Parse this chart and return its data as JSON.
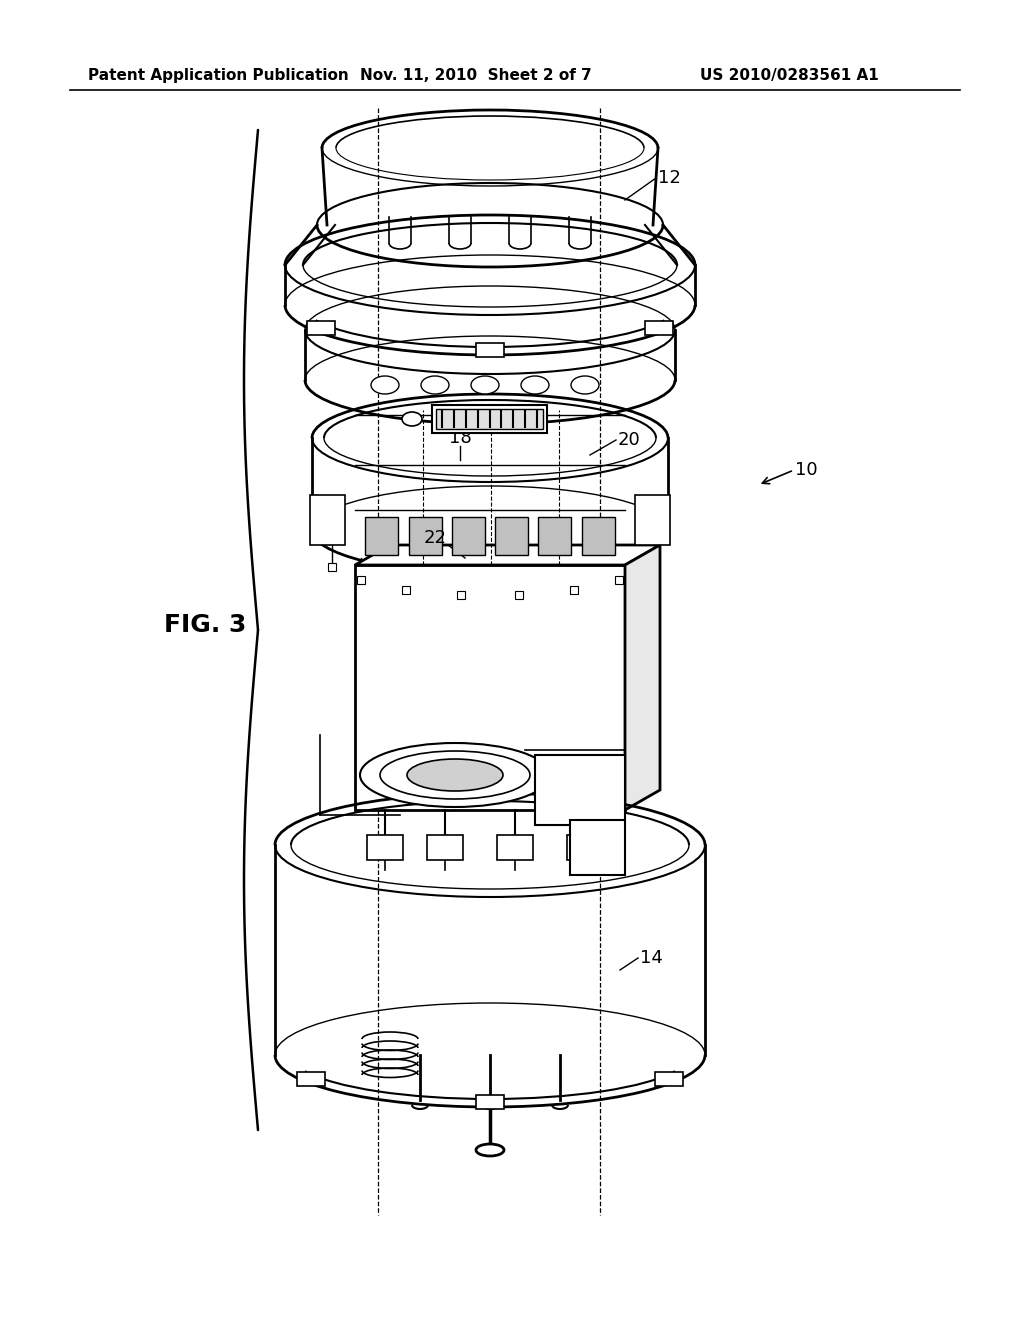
{
  "title_left": "Patent Application Publication",
  "title_mid": "Nov. 11, 2010  Sheet 2 of 7",
  "title_right": "US 2010/0283561 A1",
  "fig_label": "FIG. 3",
  "bg_color": "#ffffff",
  "line_color": "#000000",
  "header_fontsize": 11,
  "label_fontsize": 13,
  "fig_label_fontsize": 18
}
